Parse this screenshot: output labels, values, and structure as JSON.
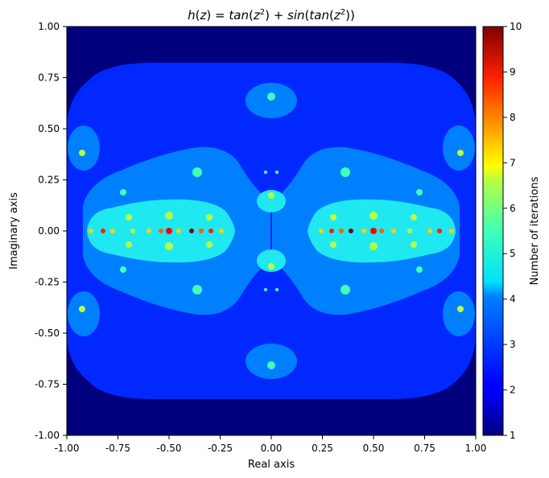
{
  "chart_data": {
    "type": "heatmap",
    "title": "h(z) = tan(z²) + sin(tan(z²))",
    "title_parts": {
      "fn": "h",
      "arg": "z",
      "rhs1": "tan",
      "rhs2": "sin",
      "rhs2b": "tan",
      "exp": "2"
    },
    "xlabel": "Real axis",
    "ylabel": "Imaginary axis",
    "colorbar_label": "Number of iterations",
    "xlim": [
      -1.0,
      1.0
    ],
    "ylim": [
      -1.0,
      1.0
    ],
    "clim": [
      1,
      10
    ],
    "colormap": "jet",
    "x_ticks": [
      "-1.00",
      "-0.75",
      "-0.50",
      "-0.25",
      "0.00",
      "0.25",
      "0.50",
      "0.75",
      "1.00"
    ],
    "y_ticks": [
      "1.00",
      "0.75",
      "0.50",
      "0.25",
      "0.00",
      "-0.25",
      "-0.50",
      "-0.75",
      "-1.00"
    ],
    "colorbar_ticks": [
      "10",
      "9",
      "8",
      "7",
      "6",
      "5",
      "4",
      "3",
      "2",
      "1"
    ],
    "regions": [
      {
        "name": "background",
        "iterations": 1
      },
      {
        "name": "outer-band",
        "iterations": 2
      },
      {
        "name": "middle-band",
        "iterations": 3
      },
      {
        "name": "inner-lobes",
        "iterations": 4
      },
      {
        "name": "spots",
        "iterations": 5
      },
      {
        "name": "hot-spots",
        "iterations": 8
      },
      {
        "name": "cores",
        "iterations": 10
      }
    ]
  }
}
